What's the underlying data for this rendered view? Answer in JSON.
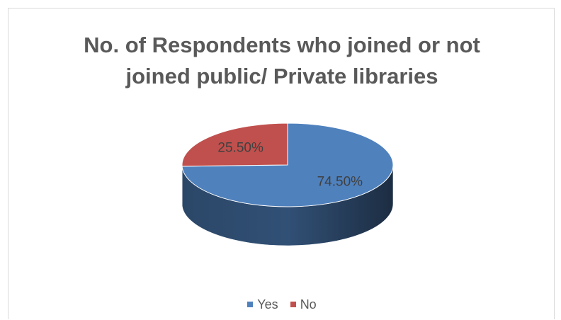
{
  "chart_data": {
    "type": "pie",
    "title_lines": [
      "No. of Respondents who joined or not",
      "joined public/ Private libraries"
    ],
    "categories": [
      "Yes",
      "No"
    ],
    "values": [
      74.5,
      25.5
    ],
    "data_labels": [
      "74.50%",
      "25.50%"
    ],
    "colors": [
      "#4f81bd",
      "#c0504d"
    ],
    "legend_position": "bottom",
    "style": "3d"
  }
}
